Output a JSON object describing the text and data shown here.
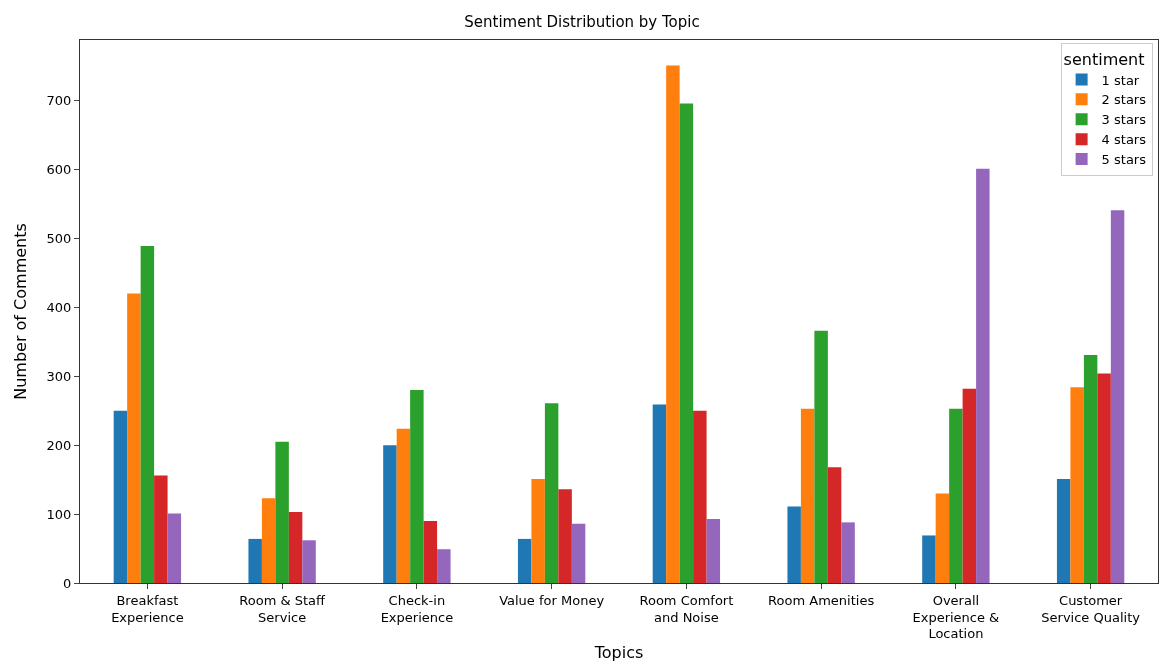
{
  "chart_data": {
    "type": "bar",
    "title": "Sentiment Distribution by Topic",
    "xlabel": "Topics",
    "ylabel": "Number of Comments",
    "legend_title": "sentiment",
    "legend": "top right",
    "categories": [
      "Breakfast Experience",
      "Room & Staff Service",
      "Check-in Experience",
      "Value for Money",
      "Room Comfort and Noise",
      "Room Amenities",
      "Overall Experience & Location",
      "Customer Service Quality"
    ],
    "ylim": [
      0,
      788
    ],
    "yticks": [
      0,
      100,
      200,
      300,
      400,
      500,
      600,
      700
    ],
    "series": [
      {
        "name": "1 star",
        "color": "#1f77b4",
        "values": [
          250,
          64,
          200,
          64,
          259,
          111,
          69,
          151
        ]
      },
      {
        "name": "2 stars",
        "color": "#ff7f0e",
        "values": [
          420,
          123,
          224,
          151,
          751,
          253,
          130,
          284
        ]
      },
      {
        "name": "3 stars",
        "color": "#2ca02c",
        "values": [
          489,
          205,
          280,
          261,
          696,
          366,
          253,
          331
        ]
      },
      {
        "name": "4 stars",
        "color": "#d62728",
        "values": [
          156,
          103,
          90,
          136,
          250,
          168,
          282,
          304
        ]
      },
      {
        "name": "5 stars",
        "color": "#9467bd",
        "values": [
          101,
          62,
          49,
          86,
          93,
          88,
          601,
          541
        ]
      }
    ]
  }
}
